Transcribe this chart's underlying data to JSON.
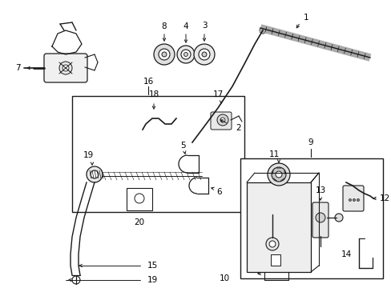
{
  "bg_color": "#ffffff",
  "line_color": "#1a1a1a",
  "fig_width": 4.89,
  "fig_height": 3.6,
  "dpi": 100,
  "font_size": 7.5,
  "font_size_small": 6.5
}
